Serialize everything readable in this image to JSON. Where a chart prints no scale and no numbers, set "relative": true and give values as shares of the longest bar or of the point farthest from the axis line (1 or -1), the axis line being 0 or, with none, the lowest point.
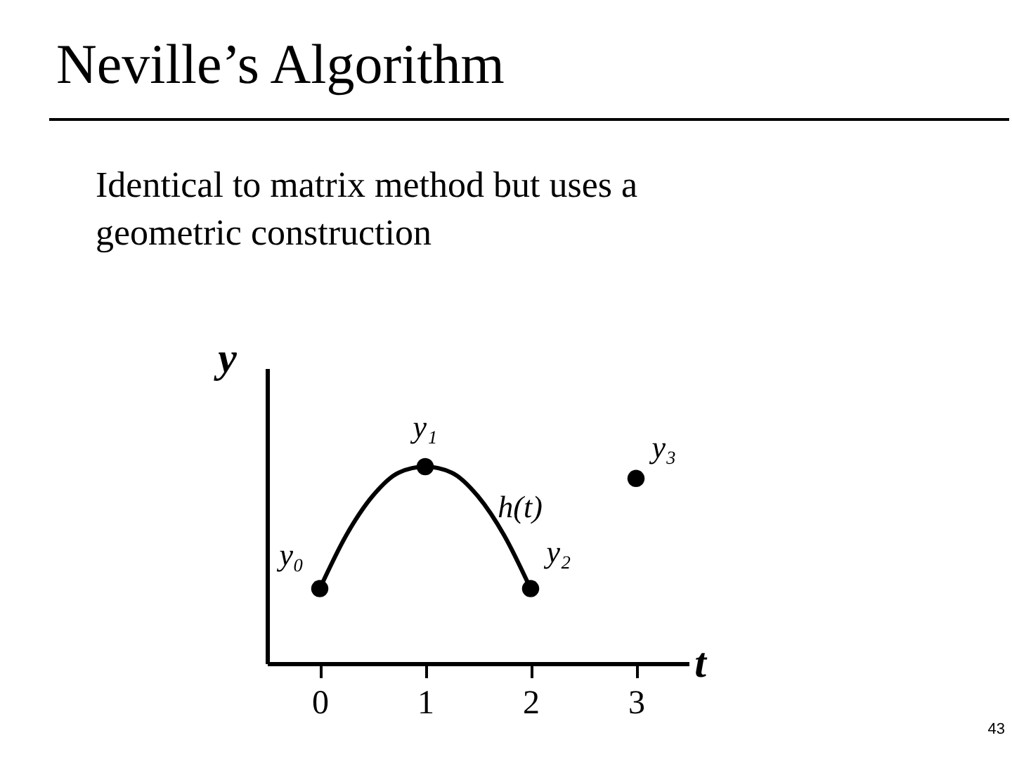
{
  "chart_data": {
    "type": "scatter",
    "title": "Neville’s Algorithm",
    "xlabel": "t",
    "ylabel": "y",
    "relative": true,
    "x": [
      0,
      1,
      2,
      3
    ],
    "xlim": [
      -0.5,
      3.5
    ],
    "xticks": [
      0,
      1,
      2,
      3
    ],
    "grid": false,
    "marker": "circle",
    "series": [
      {
        "color": "#000000",
        "values": [
          0.38,
          1,
          0.38,
          0.94
        ]
      },
      {
        "type": "line",
        "color": "#000000",
        "line_style": "solid",
        "marker": "none",
        "x": [
          0,
          0.25,
          0.5,
          0.75,
          1,
          1.25,
          1.5,
          1.75,
          2
        ],
        "values": [
          0.38,
          0.65,
          0.85,
          0.97,
          1,
          0.97,
          0.85,
          0.65,
          0.38
        ]
      }
    ],
    "annotations": [
      "Identical to matrix method but uses a geometric construction",
      {
        "text": "y₀",
        "x": 0,
        "y": 0.38
      },
      {
        "text": "y₁",
        "x": 1,
        "y": 1
      },
      {
        "text": "y₂",
        "x": 2,
        "y": 0.38
      },
      {
        "text": "y₃",
        "x": 3,
        "y": 0.94
      },
      {
        "text": "h(t)",
        "x": 1.5,
        "y": 0.85
      },
      "43"
    ]
  }
}
